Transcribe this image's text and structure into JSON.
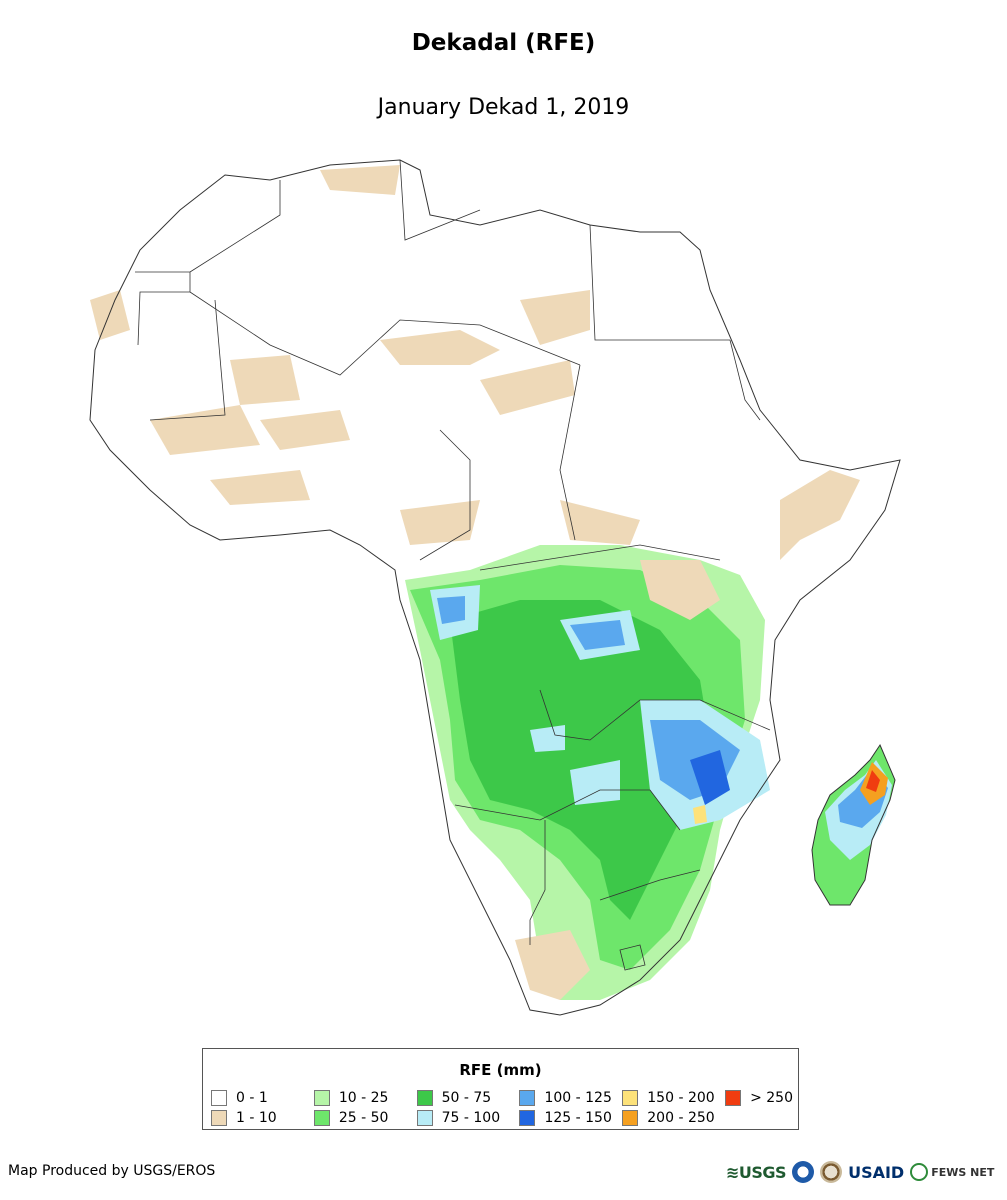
{
  "header": {
    "title": "Dekadal (RFE)",
    "subtitle": "January Dekad 1, 2019"
  },
  "legend": {
    "title": "RFE (mm)",
    "classes": [
      {
        "label": "0 - 1",
        "color": "#ffffff"
      },
      {
        "label": "1 - 10",
        "color": "#eed9b8"
      },
      {
        "label": "10 - 25",
        "color": "#b6f5a8"
      },
      {
        "label": "25 - 50",
        "color": "#6ee66b"
      },
      {
        "label": "50 - 75",
        "color": "#3dc849"
      },
      {
        "label": "75 - 100",
        "color": "#b8ecf6"
      },
      {
        "label": "100 - 125",
        "color": "#5aa8ee"
      },
      {
        "label": "125 - 150",
        "color": "#2166e0"
      },
      {
        "label": "150 - 200",
        "color": "#fde27a"
      },
      {
        "label": "200 - 250",
        "color": "#f5a020"
      },
      {
        "label": "> 250",
        "color": "#f03c10"
      }
    ]
  },
  "footer": {
    "credit": "Map Produced by USGS/EROS",
    "logos": {
      "usgs": "≋USGS",
      "usaid": "USAID",
      "fews": "FEWS NET"
    }
  },
  "icons": {
    "noaa": "noaa-seal-icon",
    "doi": "interior-seal-icon",
    "fews": "globe-icon"
  }
}
